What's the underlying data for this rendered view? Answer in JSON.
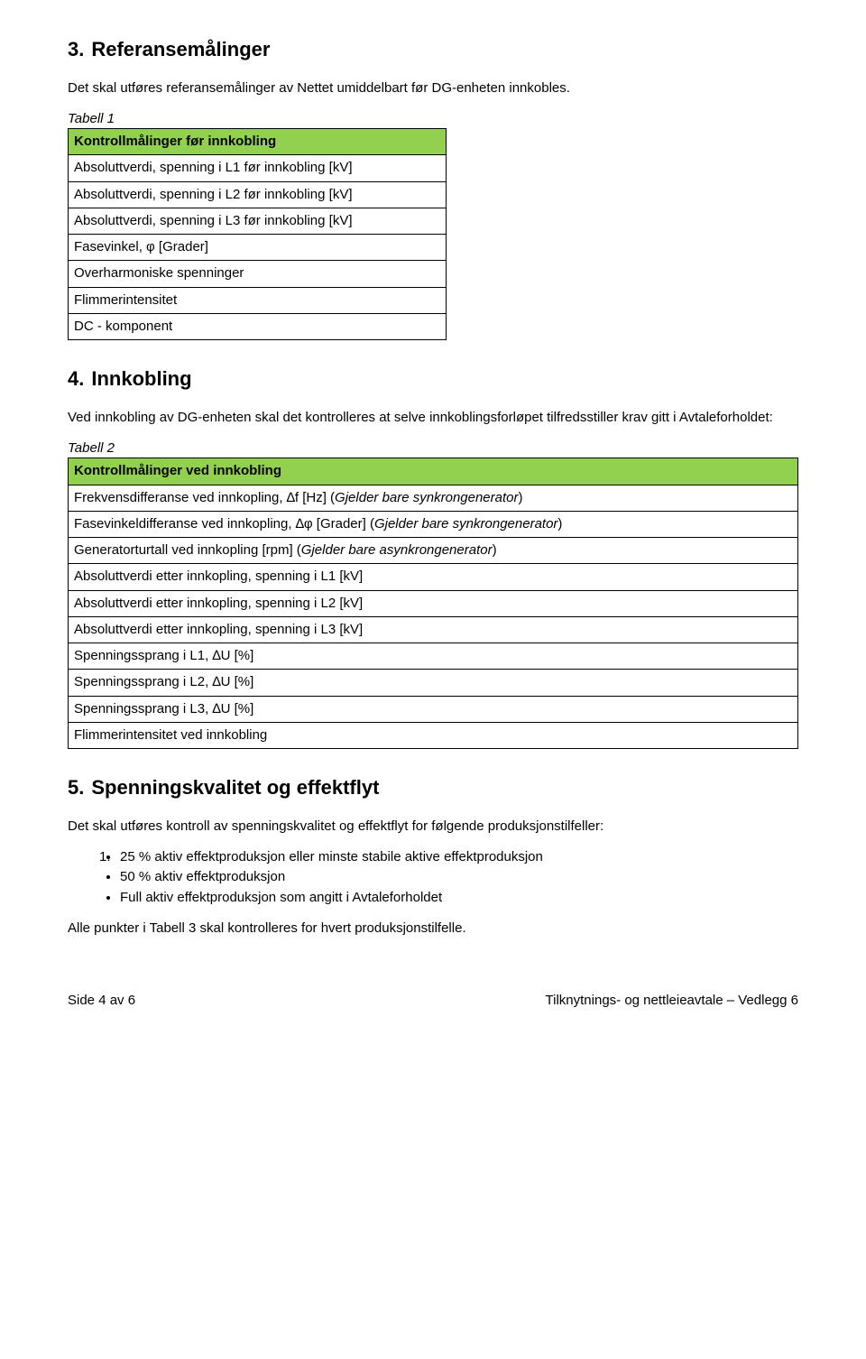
{
  "colors": {
    "table_header_bg": "#92d050",
    "border": "#000000",
    "text": "#000000",
    "background": "#ffffff"
  },
  "section3": {
    "num": "3.",
    "title": "Referansemålinger",
    "intro": "Det skal utføres referansemålinger av Nettet umiddelbart før DG-enheten innkobles.",
    "table_caption": "Tabell 1",
    "table_header": "Kontrollmålinger før innkobling",
    "rows": [
      "Absoluttverdi, spenning i L1 før innkobling [kV]",
      "Absoluttverdi, spenning i L2 før innkobling [kV]",
      "Absoluttverdi, spenning i L3 før innkobling [kV]",
      "Fasevinkel, φ [Grader]",
      "Overharmoniske spenninger",
      "Flimmerintensitet",
      "DC - komponent"
    ]
  },
  "section4": {
    "num": "4.",
    "title": "Innkobling",
    "intro": "Ved innkobling av DG-enheten skal det kontrolleres at selve innkoblingsforløpet tilfredsstiller krav gitt i Avtaleforholdet:",
    "table_caption": "Tabell 2",
    "table_header": "Kontrollmålinger ved innkobling",
    "rows": [
      {
        "pre": "Frekvensdifferanse ved innkopling, ∆f [Hz] (",
        "it": "Gjelder bare synkrongenerator",
        "post": ")"
      },
      {
        "pre": "Fasevinkeldifferanse ved innkopling, ∆φ [Grader] (",
        "it": "Gjelder bare synkrongenerator",
        "post": ")"
      },
      {
        "pre": "Generatorturtall ved innkopling [rpm] (",
        "it": "Gjelder bare asynkrongenerator",
        "post": ")"
      },
      {
        "pre": "Absoluttverdi etter innkopling, spenning i L1 [kV]",
        "it": "",
        "post": ""
      },
      {
        "pre": "Absoluttverdi etter innkopling, spenning i L2 [kV]",
        "it": "",
        "post": ""
      },
      {
        "pre": "Absoluttverdi etter innkopling, spenning i L3 [kV]",
        "it": "",
        "post": ""
      },
      {
        "pre": "Spenningssprang i L1, ∆U [%]",
        "it": "",
        "post": ""
      },
      {
        "pre": "Spenningssprang i L2, ∆U [%]",
        "it": "",
        "post": ""
      },
      {
        "pre": "Spenningssprang i L3, ∆U [%]",
        "it": "",
        "post": ""
      },
      {
        "pre": "Flimmerintensitet ved innkobling",
        "it": "",
        "post": ""
      }
    ]
  },
  "section5": {
    "num": "5.",
    "title": "Spenningskvalitet og effektflyt",
    "intro": "Det skal utføres kontroll av spenningskvalitet og effektflyt for følgende produksjonstilfeller:",
    "list_marker": "1.",
    "bullets": [
      "25 % aktiv effektproduksjon eller minste stabile aktive effektproduksjon",
      "50 % aktiv effektproduksjon",
      "Full aktiv effektproduksjon som angitt i Avtaleforholdet"
    ],
    "outro": "Alle punkter i Tabell 3 skal kontrolleres for hvert produksjonstilfelle."
  },
  "footer": {
    "left": "Side 4 av 6",
    "right": "Tilknytnings- og nettleieavtale – Vedlegg 6"
  }
}
